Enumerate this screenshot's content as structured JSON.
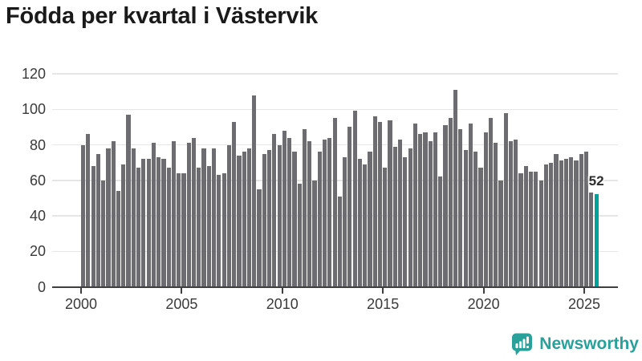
{
  "title": "Födda per kvartal i Västervik",
  "chart_data": {
    "type": "bar",
    "title": "Födda per kvartal i Västervik",
    "ylim": [
      0,
      120
    ],
    "y_ticks": [
      0,
      20,
      40,
      60,
      80,
      100,
      120
    ],
    "x_tick_labels": [
      "2000",
      "2005",
      "2010",
      "2015",
      "2020",
      "2025"
    ],
    "grid": true,
    "legend": "none",
    "series_by_year": [
      {
        "year": "2000",
        "values": [
          80,
          86,
          68,
          75
        ]
      },
      {
        "year": "2001",
        "values": [
          60,
          78,
          82,
          54
        ]
      },
      {
        "year": "2002",
        "values": [
          69,
          97,
          78,
          67
        ]
      },
      {
        "year": "2003",
        "values": [
          72,
          72,
          81,
          73
        ]
      },
      {
        "year": "2004",
        "values": [
          72,
          67,
          82,
          64
        ]
      },
      {
        "year": "2005",
        "values": [
          64,
          81,
          84,
          67
        ]
      },
      {
        "year": "2006",
        "values": [
          78,
          68,
          78,
          63
        ]
      },
      {
        "year": "2007",
        "values": [
          64,
          80,
          93,
          74
        ]
      },
      {
        "year": "2008",
        "values": [
          76,
          78,
          108,
          55
        ]
      },
      {
        "year": "2009",
        "values": [
          75,
          77,
          86,
          80
        ]
      },
      {
        "year": "2010",
        "values": [
          88,
          84,
          76,
          58
        ]
      },
      {
        "year": "2011",
        "values": [
          89,
          82,
          60,
          76
        ]
      },
      {
        "year": "2012",
        "values": [
          83,
          84,
          95,
          51
        ]
      },
      {
        "year": "2013",
        "values": [
          73,
          90,
          99,
          72
        ]
      },
      {
        "year": "2014",
        "values": [
          69,
          76,
          96,
          93
        ]
      },
      {
        "year": "2015",
        "values": [
          67,
          94,
          79,
          83
        ]
      },
      {
        "year": "2016",
        "values": [
          73,
          78,
          92,
          86
        ]
      },
      {
        "year": "2017",
        "values": [
          87,
          82,
          87,
          62
        ]
      },
      {
        "year": "2018",
        "values": [
          91,
          95,
          111,
          89
        ]
      },
      {
        "year": "2019",
        "values": [
          77,
          92,
          76,
          67
        ]
      },
      {
        "year": "2020",
        "values": [
          87,
          95,
          81,
          60
        ]
      },
      {
        "year": "2021",
        "values": [
          98,
          82,
          83,
          64
        ]
      },
      {
        "year": "2022",
        "values": [
          68,
          65,
          65,
          60
        ]
      },
      {
        "year": "2023",
        "values": [
          69,
          70,
          75,
          71
        ]
      },
      {
        "year": "2024",
        "values": [
          72,
          73,
          71,
          75
        ]
      },
      {
        "year": "2025",
        "values": [
          76,
          53,
          52
        ]
      }
    ],
    "highlight": {
      "quarter": "2025Q3",
      "value": 52,
      "label": "52"
    },
    "colors": {
      "bar": "#6c6c71",
      "highlight": "#00a39b"
    }
  },
  "logo": {
    "text": "Newsworthy",
    "color": "#2aa09a",
    "icon": "newsworthy-speech-bubble-barchart-icon"
  },
  "colors": {
    "background": "#ffffff",
    "title_text": "#1a1a1a",
    "axis_text": "#3a3a3a",
    "gridline": "#e6e6e6",
    "axis_line": "#3f3f3f",
    "annotation_text": "#2e2e2e"
  }
}
